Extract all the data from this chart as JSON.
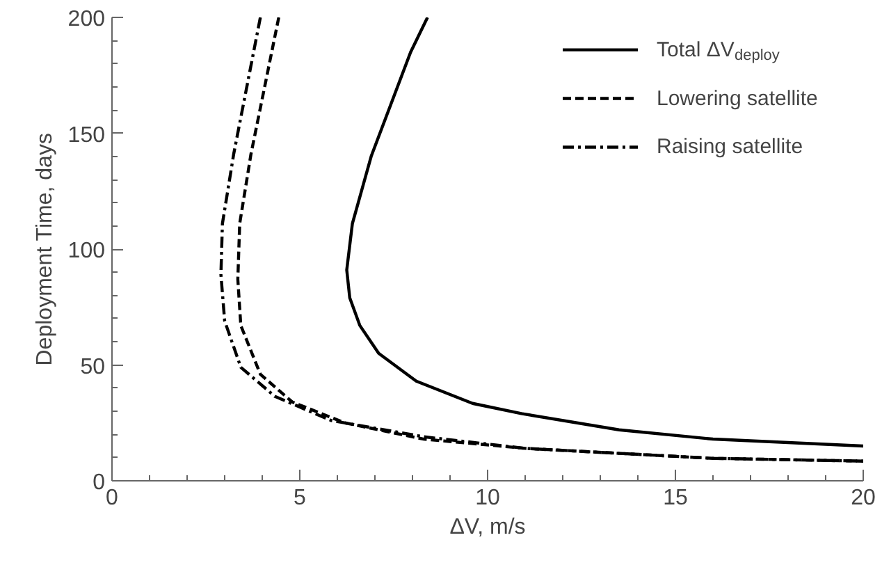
{
  "chart_data": {
    "type": "line",
    "xlabel": "ΔV, m/s",
    "ylabel": "Deployment Time, days",
    "xlim": [
      0,
      20
    ],
    "ylim": [
      0,
      200
    ],
    "xticks": [
      0,
      {
        "value": 1,
        "label": null
      },
      {
        "value": 2,
        "label": null
      },
      {
        "value": 3,
        "label": null
      },
      {
        "value": 4,
        "label": null
      },
      5,
      {
        "value": 6,
        "label": null
      },
      {
        "value": 7,
        "label": null
      },
      {
        "value": 8,
        "label": null
      },
      {
        "value": 9,
        "label": null
      },
      10,
      {
        "value": 11,
        "label": null
      },
      {
        "value": 12,
        "label": null
      },
      {
        "value": 13,
        "label": null
      },
      {
        "value": 14,
        "label": null
      },
      15,
      {
        "value": 16,
        "label": null
      },
      {
        "value": 17,
        "label": null
      },
      {
        "value": 18,
        "label": null
      },
      {
        "value": 19,
        "label": null
      },
      20
    ],
    "yticks": [
      0,
      {
        "value": 10,
        "label": null
      },
      {
        "value": 20,
        "label": null
      },
      {
        "value": 30,
        "label": null
      },
      {
        "value": 40,
        "label": null
      },
      50,
      {
        "value": 60,
        "label": null
      },
      {
        "value": 70,
        "label": null
      },
      {
        "value": 80,
        "label": null
      },
      {
        "value": 90,
        "label": null
      },
      100,
      {
        "value": 110,
        "label": null
      },
      {
        "value": 120,
        "label": null
      },
      {
        "value": 130,
        "label": null
      },
      {
        "value": 140,
        "label": null
      },
      150,
      {
        "value": 160,
        "label": null
      },
      {
        "value": 170,
        "label": null
      },
      {
        "value": 180,
        "label": null
      },
      {
        "value": 190,
        "label": null
      },
      200
    ],
    "grid": false,
    "legend": "top right",
    "series": [
      {
        "name": "Total ΔV$_{deploy}$",
        "color": "#000000",
        "line_style": "solid",
        "x": [
          8.4,
          7.95,
          6.9,
          6.4,
          6.25,
          6.33,
          6.6,
          7.1,
          8.1,
          9.6,
          10.9,
          13.5,
          16,
          20
        ],
        "values": [
          200,
          185,
          140,
          111,
          91,
          79,
          67,
          55,
          43,
          33.4,
          29,
          22,
          18,
          15
        ]
      },
      {
        "name": "Lowering satellite",
        "color": "#000000",
        "line_style": "dashed",
        "x": [
          4.44,
          3.7,
          3.4,
          3.35,
          3.43,
          3.95,
          4.8,
          6.2,
          8.3,
          11,
          16,
          20
        ],
        "values": [
          200,
          141,
          111,
          87,
          67,
          46,
          34,
          25,
          18,
          14,
          9.7,
          8.5
        ]
      },
      {
        "name": "Raising satellite",
        "color": "#000000",
        "line_style": "dashdot",
        "x": [
          3.95,
          3.24,
          2.94,
          2.9,
          3.0,
          3.43,
          4.33,
          5.84,
          8.3,
          11,
          16,
          20
        ],
        "values": [
          200,
          141,
          111,
          89,
          69,
          49,
          36.5,
          26,
          19,
          14,
          9.7,
          8.5
        ]
      }
    ]
  }
}
